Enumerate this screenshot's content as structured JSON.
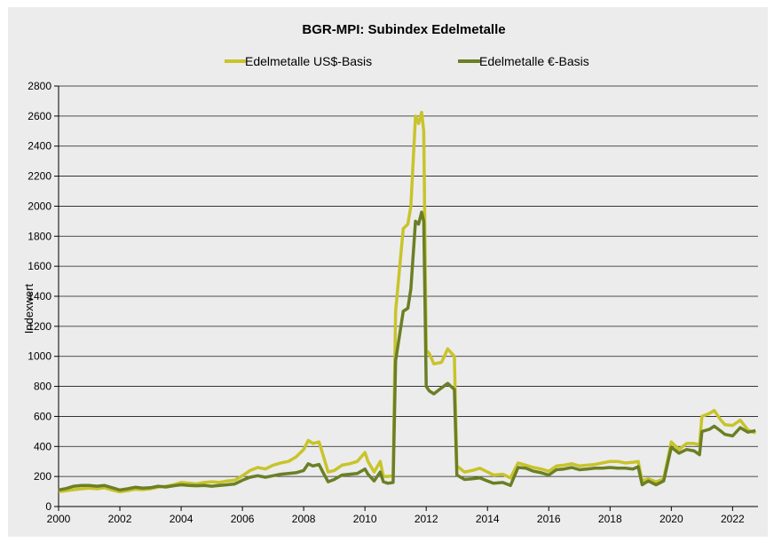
{
  "chart_data": {
    "type": "line",
    "title": "BGR-MPI:  Subindex Edelmetalle",
    "ylabel": "Indexwert",
    "xlabel": "",
    "xlim": [
      2000,
      2022.83
    ],
    "ylim": [
      0,
      2800
    ],
    "yticks": [
      0,
      200,
      400,
      600,
      800,
      1000,
      1200,
      1400,
      1600,
      1800,
      2000,
      2200,
      2400,
      2600,
      2800
    ],
    "xticks": [
      2000,
      2002,
      2004,
      2006,
      2008,
      2010,
      2012,
      2014,
      2016,
      2018,
      2020,
      2022
    ],
    "grid": "horizontal",
    "legend_position": "top",
    "series": [
      {
        "name": "Edelmetalle US$-Basis",
        "color": "#c8c42a",
        "points": [
          [
            2000.0,
            100
          ],
          [
            2000.25,
            105
          ],
          [
            2000.5,
            112
          ],
          [
            2000.75,
            118
          ],
          [
            2001.0,
            122
          ],
          [
            2001.25,
            118
          ],
          [
            2001.5,
            125
          ],
          [
            2001.75,
            110
          ],
          [
            2002.0,
            98
          ],
          [
            2002.25,
            105
          ],
          [
            2002.5,
            115
          ],
          [
            2002.75,
            112
          ],
          [
            2003.0,
            118
          ],
          [
            2003.25,
            130
          ],
          [
            2003.5,
            135
          ],
          [
            2003.75,
            145
          ],
          [
            2004.0,
            160
          ],
          [
            2004.25,
            155
          ],
          [
            2004.5,
            150
          ],
          [
            2004.75,
            160
          ],
          [
            2005.0,
            165
          ],
          [
            2005.25,
            160
          ],
          [
            2005.5,
            170
          ],
          [
            2005.75,
            175
          ],
          [
            2006.0,
            205
          ],
          [
            2006.25,
            240
          ],
          [
            2006.5,
            260
          ],
          [
            2006.75,
            250
          ],
          [
            2007.0,
            275
          ],
          [
            2007.25,
            290
          ],
          [
            2007.5,
            300
          ],
          [
            2007.75,
            330
          ],
          [
            2008.0,
            380
          ],
          [
            2008.15,
            440
          ],
          [
            2008.3,
            420
          ],
          [
            2008.5,
            430
          ],
          [
            2008.65,
            330
          ],
          [
            2008.8,
            230
          ],
          [
            2009.0,
            240
          ],
          [
            2009.25,
            275
          ],
          [
            2009.5,
            285
          ],
          [
            2009.75,
            300
          ],
          [
            2010.0,
            360
          ],
          [
            2010.1,
            300
          ],
          [
            2010.3,
            230
          ],
          [
            2010.5,
            300
          ],
          [
            2010.6,
            200
          ],
          [
            2010.75,
            200
          ],
          [
            2010.92,
            205
          ],
          [
            2011.0,
            1300
          ],
          [
            2011.25,
            1850
          ],
          [
            2011.4,
            1880
          ],
          [
            2011.5,
            2000
          ],
          [
            2011.65,
            2600
          ],
          [
            2011.75,
            2550
          ],
          [
            2011.85,
            2625
          ],
          [
            2011.92,
            2500
          ],
          [
            2012.0,
            1040
          ],
          [
            2012.1,
            1020
          ],
          [
            2012.25,
            950
          ],
          [
            2012.5,
            960
          ],
          [
            2012.7,
            1050
          ],
          [
            2012.92,
            1000
          ],
          [
            2013.0,
            270
          ],
          [
            2013.25,
            230
          ],
          [
            2013.5,
            240
          ],
          [
            2013.75,
            255
          ],
          [
            2014.0,
            230
          ],
          [
            2014.2,
            210
          ],
          [
            2014.5,
            215
          ],
          [
            2014.75,
            190
          ],
          [
            2015.0,
            290
          ],
          [
            2015.25,
            275
          ],
          [
            2015.5,
            260
          ],
          [
            2015.75,
            250
          ],
          [
            2016.0,
            235
          ],
          [
            2016.25,
            270
          ],
          [
            2016.5,
            275
          ],
          [
            2016.75,
            285
          ],
          [
            2017.0,
            270
          ],
          [
            2017.25,
            275
          ],
          [
            2017.5,
            280
          ],
          [
            2017.75,
            290
          ],
          [
            2018.0,
            300
          ],
          [
            2018.25,
            300
          ],
          [
            2018.5,
            290
          ],
          [
            2018.75,
            295
          ],
          [
            2018.92,
            300
          ],
          [
            2019.05,
            170
          ],
          [
            2019.25,
            185
          ],
          [
            2019.5,
            165
          ],
          [
            2019.75,
            185
          ],
          [
            2020.0,
            430
          ],
          [
            2020.25,
            380
          ],
          [
            2020.5,
            420
          ],
          [
            2020.75,
            420
          ],
          [
            2020.92,
            410
          ],
          [
            2021.0,
            600
          ],
          [
            2021.25,
            620
          ],
          [
            2021.4,
            640
          ],
          [
            2021.6,
            580
          ],
          [
            2021.75,
            545
          ],
          [
            2022.0,
            540
          ],
          [
            2022.25,
            575
          ],
          [
            2022.5,
            510
          ],
          [
            2022.75,
            490
          ]
        ]
      },
      {
        "name": "Edelmetalle €-Basis",
        "color": "#6b7f25",
        "points": [
          [
            2000.0,
            110
          ],
          [
            2000.25,
            120
          ],
          [
            2000.5,
            135
          ],
          [
            2000.75,
            140
          ],
          [
            2001.0,
            140
          ],
          [
            2001.25,
            135
          ],
          [
            2001.5,
            140
          ],
          [
            2001.75,
            125
          ],
          [
            2002.0,
            110
          ],
          [
            2002.25,
            118
          ],
          [
            2002.5,
            128
          ],
          [
            2002.75,
            122
          ],
          [
            2003.0,
            125
          ],
          [
            2003.25,
            135
          ],
          [
            2003.5,
            130
          ],
          [
            2003.75,
            138
          ],
          [
            2004.0,
            145
          ],
          [
            2004.25,
            140
          ],
          [
            2004.5,
            138
          ],
          [
            2004.75,
            140
          ],
          [
            2005.0,
            135
          ],
          [
            2005.25,
            140
          ],
          [
            2005.5,
            145
          ],
          [
            2005.75,
            150
          ],
          [
            2006.0,
            175
          ],
          [
            2006.25,
            195
          ],
          [
            2006.5,
            205
          ],
          [
            2006.75,
            195
          ],
          [
            2007.0,
            205
          ],
          [
            2007.25,
            215
          ],
          [
            2007.5,
            220
          ],
          [
            2007.75,
            225
          ],
          [
            2008.0,
            240
          ],
          [
            2008.15,
            285
          ],
          [
            2008.3,
            270
          ],
          [
            2008.5,
            280
          ],
          [
            2008.65,
            220
          ],
          [
            2008.8,
            165
          ],
          [
            2009.0,
            180
          ],
          [
            2009.25,
            210
          ],
          [
            2009.5,
            215
          ],
          [
            2009.75,
            220
          ],
          [
            2010.0,
            250
          ],
          [
            2010.1,
            215
          ],
          [
            2010.3,
            170
          ],
          [
            2010.5,
            230
          ],
          [
            2010.6,
            165
          ],
          [
            2010.75,
            155
          ],
          [
            2010.92,
            160
          ],
          [
            2011.0,
            970
          ],
          [
            2011.25,
            1300
          ],
          [
            2011.4,
            1320
          ],
          [
            2011.5,
            1450
          ],
          [
            2011.65,
            1900
          ],
          [
            2011.75,
            1880
          ],
          [
            2011.85,
            1960
          ],
          [
            2011.92,
            1900
          ],
          [
            2012.0,
            800
          ],
          [
            2012.1,
            770
          ],
          [
            2012.25,
            750
          ],
          [
            2012.5,
            790
          ],
          [
            2012.7,
            820
          ],
          [
            2012.92,
            780
          ],
          [
            2013.0,
            210
          ],
          [
            2013.25,
            180
          ],
          [
            2013.5,
            185
          ],
          [
            2013.75,
            190
          ],
          [
            2014.0,
            170
          ],
          [
            2014.2,
            155
          ],
          [
            2014.5,
            160
          ],
          [
            2014.75,
            140
          ],
          [
            2015.0,
            260
          ],
          [
            2015.25,
            255
          ],
          [
            2015.5,
            235
          ],
          [
            2015.75,
            225
          ],
          [
            2016.0,
            210
          ],
          [
            2016.25,
            245
          ],
          [
            2016.5,
            250
          ],
          [
            2016.75,
            260
          ],
          [
            2017.0,
            245
          ],
          [
            2017.25,
            250
          ],
          [
            2017.5,
            255
          ],
          [
            2017.75,
            255
          ],
          [
            2018.0,
            260
          ],
          [
            2018.25,
            255
          ],
          [
            2018.5,
            255
          ],
          [
            2018.75,
            250
          ],
          [
            2018.92,
            265
          ],
          [
            2019.05,
            145
          ],
          [
            2019.25,
            170
          ],
          [
            2019.5,
            145
          ],
          [
            2019.75,
            170
          ],
          [
            2020.0,
            395
          ],
          [
            2020.25,
            355
          ],
          [
            2020.5,
            380
          ],
          [
            2020.75,
            370
          ],
          [
            2020.92,
            345
          ],
          [
            2021.0,
            500
          ],
          [
            2021.25,
            515
          ],
          [
            2021.4,
            535
          ],
          [
            2021.6,
            505
          ],
          [
            2021.75,
            480
          ],
          [
            2022.0,
            470
          ],
          [
            2022.25,
            525
          ],
          [
            2022.5,
            495
          ],
          [
            2022.75,
            505
          ]
        ]
      }
    ]
  }
}
